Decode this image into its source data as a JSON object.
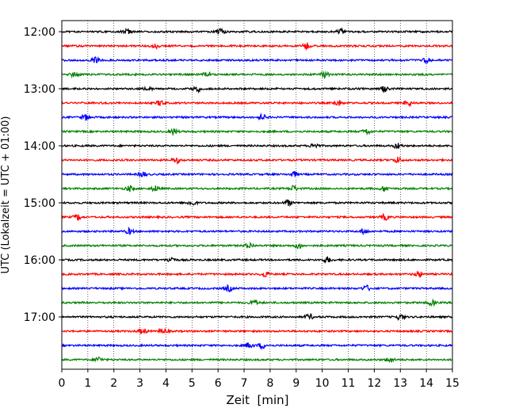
{
  "chart_data": {
    "type": "line",
    "chart_kind": "helicorder",
    "xlabel": "Zeit  [min]",
    "ylabel": "UTC (Lokalzeit = UTC + 01:00)",
    "xlim": [
      0,
      15
    ],
    "x_ticks": [
      "0",
      "1",
      "2",
      "3",
      "4",
      "5",
      "6",
      "7",
      "8",
      "9",
      "10",
      "11",
      "12",
      "13",
      "14",
      "15"
    ],
    "y_ticks": [
      "12:00",
      "13:00",
      "14:00",
      "15:00",
      "16:00",
      "17:00"
    ],
    "row_interval_min": 15,
    "grid": "vertical dotted at each minute",
    "trace_colors": [
      "#000000",
      "#ff0000",
      "#0000ff",
      "#008000"
    ],
    "rows": [
      {
        "time": "12:00",
        "color": "#000000",
        "bursts_min": [
          2.5,
          6.1,
          10.7
        ]
      },
      {
        "time": "12:15",
        "color": "#ff0000",
        "bursts_min": [
          3.6,
          9.4
        ]
      },
      {
        "time": "12:30",
        "color": "#0000ff",
        "bursts_min": [
          1.3,
          14.0
        ]
      },
      {
        "time": "12:45",
        "color": "#008000",
        "bursts_min": [
          0.5,
          5.6,
          10.1
        ]
      },
      {
        "time": "13:00",
        "color": "#000000",
        "bursts_min": [
          3.3,
          5.2,
          12.4
        ]
      },
      {
        "time": "13:15",
        "color": "#ff0000",
        "bursts_min": [
          3.8,
          10.6,
          13.3
        ]
      },
      {
        "time": "13:30",
        "color": "#0000ff",
        "bursts_min": [
          0.9,
          7.7
        ]
      },
      {
        "time": "13:45",
        "color": "#008000",
        "bursts_min": [
          4.3,
          11.7
        ]
      },
      {
        "time": "14:00",
        "color": "#000000",
        "bursts_min": [
          9.7,
          12.9
        ]
      },
      {
        "time": "14:15",
        "color": "#ff0000",
        "bursts_min": [
          4.4,
          12.9
        ]
      },
      {
        "time": "14:30",
        "color": "#0000ff",
        "bursts_min": [
          3.1,
          8.9
        ]
      },
      {
        "time": "14:45",
        "color": "#008000",
        "bursts_min": [
          2.6,
          3.6,
          8.9,
          12.4
        ]
      },
      {
        "time": "15:00",
        "color": "#000000",
        "bursts_min": [
          8.7,
          5.0
        ]
      },
      {
        "time": "15:15",
        "color": "#ff0000",
        "bursts_min": [
          0.6,
          12.4
        ]
      },
      {
        "time": "15:30",
        "color": "#0000ff",
        "bursts_min": [
          2.6,
          11.6
        ]
      },
      {
        "time": "15:45",
        "color": "#008000",
        "bursts_min": [
          7.2,
          9.1
        ]
      },
      {
        "time": "16:00",
        "color": "#000000",
        "bursts_min": [
          4.2,
          10.2
        ]
      },
      {
        "time": "16:15",
        "color": "#ff0000",
        "bursts_min": [
          7.8,
          13.7
        ]
      },
      {
        "time": "16:30",
        "color": "#0000ff",
        "bursts_min": [
          6.4,
          11.7
        ]
      },
      {
        "time": "16:45",
        "color": "#008000",
        "bursts_min": [
          7.4,
          14.2
        ]
      },
      {
        "time": "17:00",
        "color": "#000000",
        "bursts_min": [
          9.5,
          13.0
        ]
      },
      {
        "time": "17:15",
        "color": "#ff0000",
        "bursts_min": [
          3.1,
          3.9
        ]
      },
      {
        "time": "17:30",
        "color": "#0000ff",
        "bursts_min": [
          7.2,
          7.7
        ]
      },
      {
        "time": "17:45",
        "color": "#008000",
        "bursts_min": [
          1.4,
          12.6
        ]
      }
    ]
  }
}
